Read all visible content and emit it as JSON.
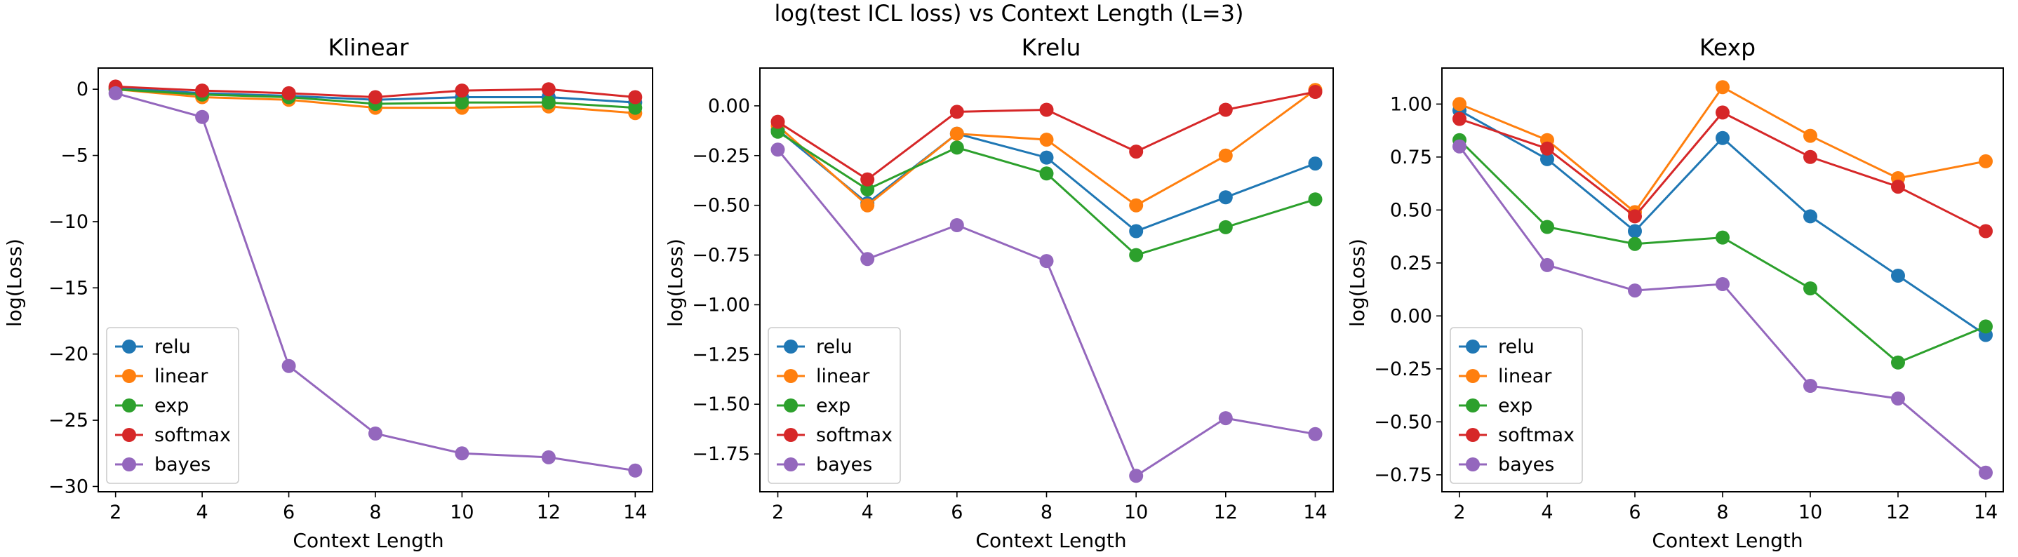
{
  "figure": {
    "title": "log(test ICL loss) vs Context Length (L=3)"
  },
  "colors": {
    "relu": "#1f77b4",
    "linear": "#ff7f0e",
    "exp": "#2ca02c",
    "softmax": "#d62728",
    "bayes": "#9467bd"
  },
  "chart_data": [
    {
      "type": "line",
      "title": "Klinear",
      "xlabel": "Context Length",
      "ylabel": "log(Loss)",
      "x": [
        2,
        4,
        6,
        8,
        10,
        12,
        14
      ],
      "xticks": [
        2,
        4,
        6,
        8,
        10,
        12,
        14
      ],
      "yticks": [
        0,
        -5,
        -10,
        -15,
        -20,
        -25,
        -30
      ],
      "yticklabels": [
        "0",
        "−5",
        "−10",
        "−15",
        "−20",
        "−25",
        "−30"
      ],
      "xlim": [
        1.6,
        14.4
      ],
      "ylim": [
        -30.4,
        1.6
      ],
      "grid": false,
      "legend_position": "lower-left",
      "series": [
        {
          "name": "relu",
          "values": [
            0.1,
            -0.3,
            -0.5,
            -0.8,
            -0.6,
            -0.6,
            -1.0
          ]
        },
        {
          "name": "linear",
          "values": [
            0.0,
            -0.6,
            -0.8,
            -1.4,
            -1.4,
            -1.3,
            -1.8
          ]
        },
        {
          "name": "exp",
          "values": [
            0.0,
            -0.4,
            -0.6,
            -1.1,
            -1.0,
            -1.0,
            -1.4
          ]
        },
        {
          "name": "softmax",
          "values": [
            0.2,
            -0.1,
            -0.3,
            -0.6,
            -0.1,
            0.0,
            -0.6
          ]
        },
        {
          "name": "bayes",
          "values": [
            -0.3,
            -2.1,
            -20.9,
            -26.0,
            -27.5,
            -27.8,
            -28.8
          ]
        }
      ]
    },
    {
      "type": "line",
      "title": "Krelu",
      "xlabel": "Context Length",
      "ylabel": "log(Loss)",
      "x": [
        2,
        4,
        6,
        8,
        10,
        12,
        14
      ],
      "xticks": [
        2,
        4,
        6,
        8,
        10,
        12,
        14
      ],
      "yticks": [
        0,
        -0.25,
        -0.5,
        -0.75,
        -1.0,
        -1.25,
        -1.5,
        -1.75
      ],
      "yticklabels": [
        "0.00",
        "−0.25",
        "−0.50",
        "−0.75",
        "−1.00",
        "−1.25",
        "−1.50",
        "−1.75"
      ],
      "xlim": [
        1.6,
        14.4
      ],
      "ylim": [
        -1.94,
        0.19
      ],
      "grid": false,
      "legend_position": "lower-left",
      "series": [
        {
          "name": "relu",
          "values": [
            -0.12,
            -0.49,
            -0.14,
            -0.26,
            -0.63,
            -0.46,
            -0.29
          ]
        },
        {
          "name": "linear",
          "values": [
            -0.1,
            -0.5,
            -0.14,
            -0.17,
            -0.5,
            -0.25,
            0.08
          ]
        },
        {
          "name": "exp",
          "values": [
            -0.13,
            -0.42,
            -0.21,
            -0.34,
            -0.75,
            -0.61,
            -0.47
          ]
        },
        {
          "name": "softmax",
          "values": [
            -0.08,
            -0.37,
            -0.03,
            -0.02,
            -0.23,
            -0.02,
            0.07
          ]
        },
        {
          "name": "bayes",
          "values": [
            -0.22,
            -0.77,
            -0.6,
            -0.78,
            -1.86,
            -1.57,
            -1.65
          ]
        }
      ]
    },
    {
      "type": "line",
      "title": "Kexp",
      "xlabel": "Context Length",
      "ylabel": "log(Loss)",
      "x": [
        2,
        4,
        6,
        8,
        10,
        12,
        14
      ],
      "xticks": [
        2,
        4,
        6,
        8,
        10,
        12,
        14
      ],
      "yticks": [
        1.0,
        0.75,
        0.5,
        0.25,
        0,
        -0.25,
        -0.5,
        -0.75
      ],
      "yticklabels": [
        "1.00",
        "0.75",
        "0.50",
        "0.25",
        "0.00",
        "−0.25",
        "−0.50",
        "−0.75"
      ],
      "xlim": [
        1.6,
        14.4
      ],
      "ylim": [
        -0.83,
        1.17
      ],
      "grid": false,
      "legend_position": "lower-left",
      "series": [
        {
          "name": "relu",
          "values": [
            0.97,
            0.74,
            0.4,
            0.84,
            0.47,
            0.19,
            -0.09
          ]
        },
        {
          "name": "linear",
          "values": [
            1.0,
            0.83,
            0.49,
            1.08,
            0.85,
            0.65,
            0.73
          ]
        },
        {
          "name": "exp",
          "values": [
            0.83,
            0.42,
            0.34,
            0.37,
            0.13,
            -0.22,
            -0.05
          ]
        },
        {
          "name": "softmax",
          "values": [
            0.93,
            0.79,
            0.47,
            0.96,
            0.75,
            0.61,
            0.4
          ]
        },
        {
          "name": "bayes",
          "values": [
            0.8,
            0.24,
            0.12,
            0.15,
            -0.33,
            -0.39,
            -0.74
          ]
        }
      ]
    }
  ]
}
